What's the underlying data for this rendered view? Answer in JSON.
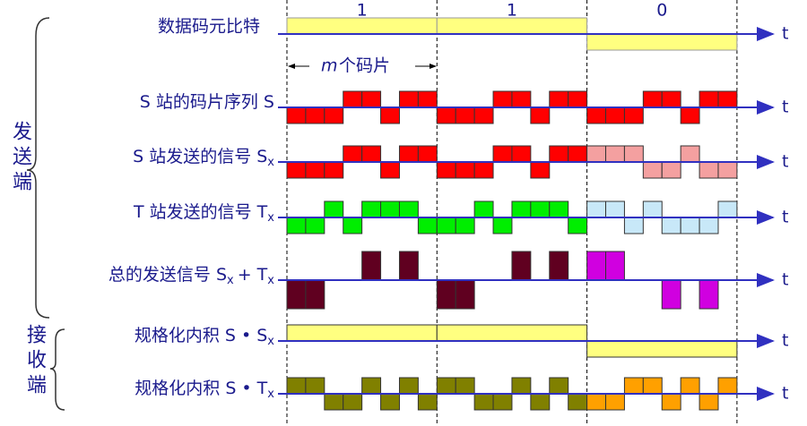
{
  "title_bits": {
    "label": "数据码元比特",
    "values": [
      1,
      1,
      0
    ],
    "color": "#ffff80"
  },
  "chip_span": {
    "symbol": "m",
    "text": "个码片"
  },
  "axis_label": "t",
  "groups": {
    "send": "发送端",
    "receive": "接收端"
  },
  "rows": [
    {
      "label": "S 站的码片序列 S",
      "sub": "",
      "colors": [
        "#ff0000",
        "#ff0000",
        "#ff0000"
      ],
      "levels": [
        -1,
        -1,
        -1,
        1,
        1,
        -1,
        1,
        1,
        -1,
        -1,
        -1,
        1,
        1,
        -1,
        1,
        1,
        -1,
        -1,
        -1,
        1,
        1,
        -1,
        1,
        1
      ]
    },
    {
      "label": "S 站发送的信号 S",
      "sub": "x",
      "colors": [
        "#ff0000",
        "#ff0000",
        "#f4a0a0"
      ],
      "levels": [
        -1,
        -1,
        -1,
        1,
        1,
        -1,
        1,
        1,
        -1,
        -1,
        -1,
        1,
        1,
        -1,
        1,
        1,
        1,
        1,
        1,
        -1,
        -1,
        1,
        -1,
        -1
      ]
    },
    {
      "label": "T 站发送的信号 T",
      "sub": "x",
      "colors": [
        "#00ee00",
        "#00ee00",
        "#c8e8f8"
      ],
      "levels": [
        -1,
        -1,
        1,
        -1,
        1,
        1,
        1,
        -1,
        -1,
        -1,
        1,
        -1,
        1,
        1,
        1,
        -1,
        1,
        1,
        -1,
        1,
        -1,
        -1,
        -1,
        1
      ]
    },
    {
      "label": "总的发送信号 S",
      "sub": "x",
      "plus": "+ T",
      "sub2": "x",
      "colors": [
        "#600020",
        "#600020",
        "#d000e0"
      ],
      "levels": [
        -2,
        -2,
        0,
        0,
        2,
        0,
        2,
        0,
        -2,
        -2,
        0,
        0,
        2,
        0,
        2,
        0,
        2,
        2,
        0,
        0,
        -2,
        0,
        -2,
        0
      ]
    },
    {
      "label": "规格化内积 S • S",
      "sub": "x",
      "colors": [
        "#ffff80",
        "#ffff80",
        "#ffff80"
      ],
      "levels": [
        1,
        1,
        -1
      ]
    },
    {
      "label": "规格化内积 S • T",
      "sub": "x",
      "colors": [
        "#808000",
        "#808000",
        "#ffa000"
      ],
      "levels": [
        1,
        1,
        -1,
        -1,
        1,
        -1,
        1,
        -1,
        1,
        1,
        -1,
        -1,
        1,
        -1,
        1,
        -1,
        -1,
        -1,
        1,
        1,
        -1,
        1,
        -1,
        1
      ]
    }
  ]
}
